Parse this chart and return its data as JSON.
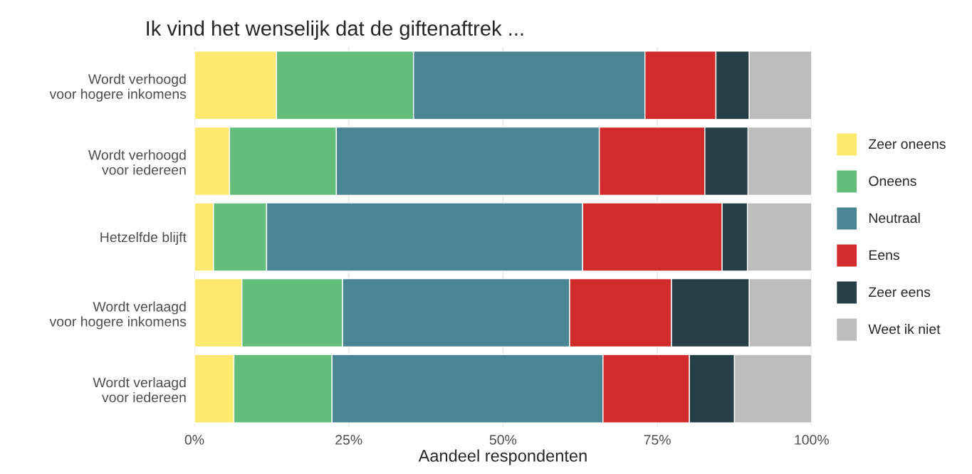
{
  "chart_data": {
    "type": "bar",
    "orientation": "horizontal",
    "stacked": true,
    "title": "Ik vind het wenselijk dat de giftenaftrek ...",
    "xlabel": "Aandeel respondenten",
    "categories": [
      "Wordt verhoogd\nvoor hogere inkomens",
      "Wordt verhoogd\nvoor iedereen",
      "Hetzelfde blijft",
      "Wordt verlaagd\nvoor hogere inkomens",
      "Wordt verlaagd\nvoor iedereen"
    ],
    "series": [
      {
        "name": "Zeer oneens",
        "color": "#fde96f",
        "values": [
          13.3,
          5.7,
          3.1,
          7.7,
          6.4
        ]
      },
      {
        "name": "Oneens",
        "color": "#63be7b",
        "values": [
          22.2,
          17.3,
          8.6,
          16.3,
          15.9
        ]
      },
      {
        "name": "Neutraal",
        "color": "#4a8593",
        "values": [
          37.5,
          42.6,
          51.2,
          36.8,
          43.9
        ]
      },
      {
        "name": "Eens",
        "color": "#d12c2b",
        "values": [
          11.5,
          17.1,
          22.6,
          16.5,
          14.0
        ]
      },
      {
        "name": "Zeer eens",
        "color": "#263f47",
        "values": [
          5.4,
          7.0,
          4.1,
          12.6,
          7.3
        ]
      },
      {
        "name": "Weet ik niet",
        "color": "#bdbdbd",
        "values": [
          10.1,
          10.3,
          10.4,
          10.1,
          12.5
        ]
      }
    ],
    "xlim": [
      0,
      100
    ],
    "xticks": [
      {
        "value": 0,
        "label": "0%"
      },
      {
        "value": 25,
        "label": "25%"
      },
      {
        "value": 50,
        "label": "50%"
      },
      {
        "value": 75,
        "label": "75%"
      },
      {
        "value": 100,
        "label": "100%"
      }
    ],
    "grid": true,
    "legend": "right"
  }
}
